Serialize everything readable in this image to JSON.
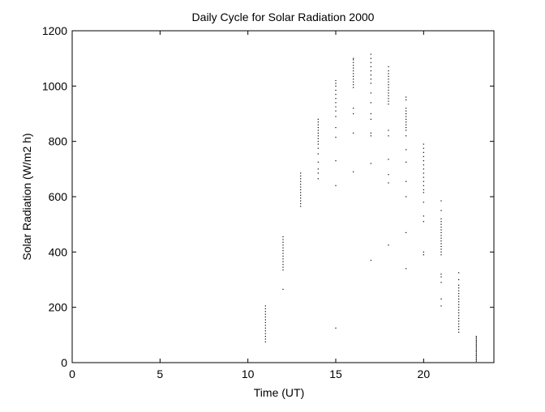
{
  "chart_data": {
    "type": "scatter",
    "title": "Daily Cycle for Solar Radiation 2000",
    "xlabel": "Time (UT)",
    "ylabel": "Solar Radiation (W/m2 h)",
    "xlim": [
      0,
      24
    ],
    "ylim": [
      0,
      1200
    ],
    "xticks": [
      0,
      5,
      10,
      15,
      20
    ],
    "yticks": [
      0,
      200,
      400,
      600,
      800,
      1000,
      1200
    ],
    "xtick_labels": [
      "0",
      "5",
      "10",
      "15",
      "20"
    ],
    "ytick_labels": [
      "0",
      "200",
      "400",
      "600",
      "800",
      "1000",
      "1200"
    ],
    "grid": false,
    "box": true,
    "marker": "point",
    "marker_color": "#000000",
    "series": [
      {
        "values_by_hour": [
          {
            "x": 11,
            "y": [
              75,
              85,
              95,
              105,
              115,
              125,
              135,
              145,
              155,
              165,
              175,
              185,
              195,
              205
            ]
          },
          {
            "x": 12,
            "y": [
              265,
              335,
              345,
              355,
              365,
              375,
              385,
              395,
              405,
              415,
              425,
              435,
              445,
              455
            ]
          },
          {
            "x": 13,
            "y": [
              565,
              575,
              585,
              595,
              605,
              615,
              625,
              635,
              645,
              655,
              665,
              675,
              685
            ]
          },
          {
            "x": 14,
            "y": [
              665,
              685,
              700,
              725,
              755,
              775,
              790,
              800,
              810,
              820,
              830,
              840,
              850,
              860,
              870,
              880
            ]
          },
          {
            "x": 15,
            "y": [
              125,
              640,
              730,
              815,
              850,
              890,
              910,
              925,
              940,
              955,
              970,
              985,
              1000,
              1010,
              1020
            ]
          },
          {
            "x": 16,
            "y": [
              690,
              830,
              900,
              920,
              995,
              1005,
              1015,
              1025,
              1035,
              1045,
              1055,
              1065,
              1075,
              1085,
              1095,
              1100
            ]
          },
          {
            "x": 17,
            "y": [
              370,
              720,
              820,
              830,
              880,
              900,
              940,
              975,
              1010,
              1025,
              1040,
              1055,
              1070,
              1085,
              1100,
              1115
            ]
          },
          {
            "x": 18,
            "y": [
              425,
              650,
              680,
              735,
              820,
              840,
              935,
              945,
              955,
              965,
              975,
              985,
              995,
              1005,
              1015,
              1025,
              1035,
              1045,
              1055,
              1070
            ]
          },
          {
            "x": 19,
            "y": [
              340,
              470,
              600,
              655,
              725,
              770,
              820,
              840,
              850,
              860,
              870,
              880,
              890,
              900,
              910,
              920,
              950,
              960
            ]
          },
          {
            "x": 20,
            "y": [
              390,
              400,
              510,
              530,
              580,
              615,
              625,
              640,
              655,
              670,
              685,
              700,
              715,
              730,
              745,
              760,
              775,
              790
            ]
          },
          {
            "x": 21,
            "y": [
              205,
              230,
              290,
              310,
              320,
              390,
              400,
              410,
              420,
              430,
              440,
              450,
              460,
              470,
              480,
              490,
              500,
              510,
              520,
              550,
              585
            ]
          },
          {
            "x": 22,
            "y": [
              110,
              120,
              130,
              140,
              150,
              160,
              170,
              180,
              190,
              200,
              210,
              220,
              230,
              240,
              250,
              260,
              270,
              280,
              300,
              325
            ]
          },
          {
            "x": 23,
            "y": [
              5,
              10,
              15,
              20,
              25,
              30,
              35,
              40,
              45,
              50,
              55,
              60,
              65,
              70,
              75,
              80,
              85,
              90,
              95
            ]
          }
        ]
      }
    ]
  }
}
